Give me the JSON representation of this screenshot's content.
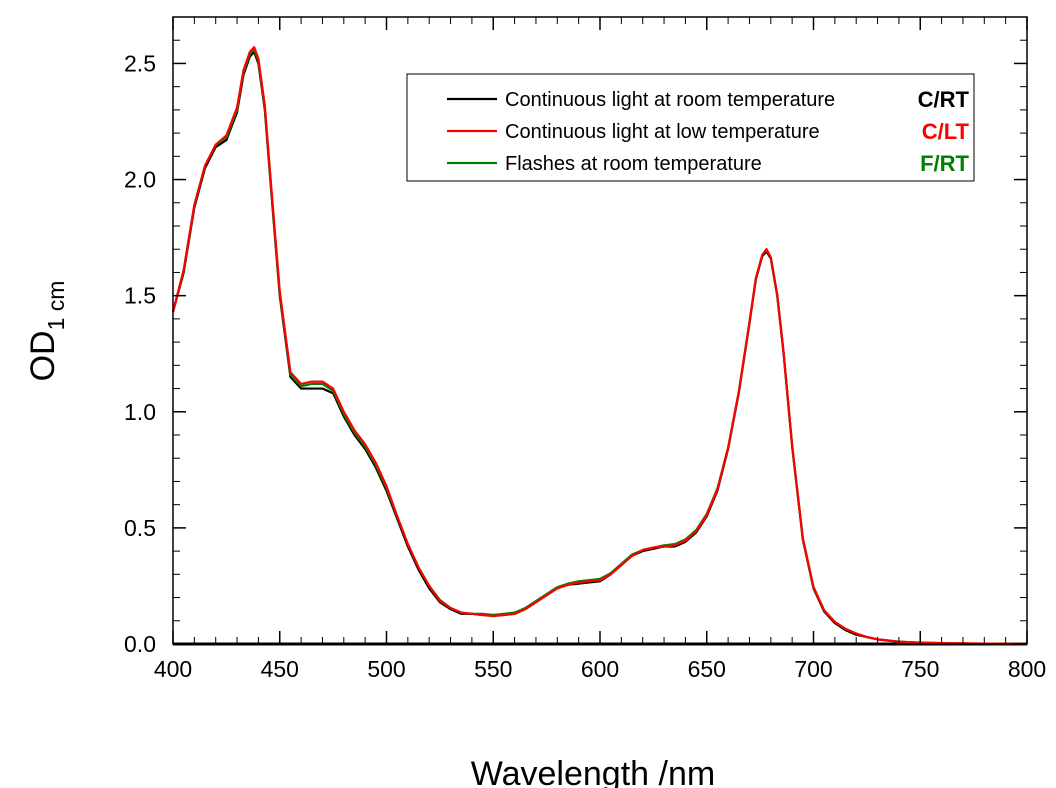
{
  "chart_data": {
    "type": "line",
    "xlabel": "Wavelength /nm",
    "ylabel_main": "OD",
    "ylabel_sub": "1 cm",
    "xlim": [
      400,
      800
    ],
    "ylim": [
      0,
      2.7
    ],
    "x_ticks": [
      400,
      450,
      500,
      550,
      600,
      650,
      700,
      750,
      800
    ],
    "y_ticks": [
      0.0,
      0.5,
      1.0,
      1.5,
      2.0,
      2.5
    ],
    "x_tick_labels": [
      "400",
      "450",
      "500",
      "550",
      "600",
      "650",
      "700",
      "750",
      "800"
    ],
    "y_tick_labels": [
      "0.0",
      "0.5",
      "1.0",
      "1.5",
      "2.0",
      "2.5"
    ],
    "grid": false,
    "legend_position": "top-right",
    "series": [
      {
        "name": "Continuous light at room temperature",
        "tag": "C/RT",
        "color": "#000000",
        "x": [
          400,
          405,
          410,
          415,
          420,
          425,
          430,
          433,
          436,
          438,
          440,
          443,
          446,
          450,
          455,
          460,
          465,
          470,
          475,
          480,
          485,
          490,
          495,
          500,
          505,
          510,
          515,
          520,
          525,
          530,
          535,
          540,
          545,
          550,
          555,
          560,
          565,
          570,
          575,
          580,
          585,
          590,
          595,
          600,
          605,
          610,
          615,
          620,
          625,
          630,
          635,
          640,
          645,
          650,
          655,
          660,
          665,
          670,
          673,
          676,
          678,
          680,
          683,
          686,
          690,
          695,
          700,
          705,
          710,
          715,
          720,
          725,
          730,
          740,
          750,
          760,
          770,
          780,
          790,
          800
        ],
        "y": [
          1.43,
          1.6,
          1.88,
          2.05,
          2.14,
          2.17,
          2.29,
          2.45,
          2.53,
          2.55,
          2.5,
          2.3,
          1.95,
          1.5,
          1.15,
          1.1,
          1.1,
          1.1,
          1.08,
          0.98,
          0.9,
          0.84,
          0.76,
          0.66,
          0.54,
          0.42,
          0.32,
          0.24,
          0.18,
          0.15,
          0.13,
          0.13,
          0.125,
          0.125,
          0.125,
          0.13,
          0.15,
          0.18,
          0.21,
          0.24,
          0.255,
          0.26,
          0.265,
          0.27,
          0.3,
          0.34,
          0.38,
          0.4,
          0.41,
          0.42,
          0.42,
          0.44,
          0.48,
          0.55,
          0.66,
          0.84,
          1.08,
          1.38,
          1.57,
          1.67,
          1.69,
          1.66,
          1.5,
          1.25,
          0.85,
          0.45,
          0.24,
          0.14,
          0.09,
          0.06,
          0.04,
          0.03,
          0.02,
          0.01,
          0.005,
          0.003,
          0.002,
          0.001,
          0.0,
          0.0
        ]
      },
      {
        "name": "Continuous light at low temperature",
        "tag": "C/LT",
        "color": "#ff0000",
        "x": [
          400,
          405,
          410,
          415,
          420,
          425,
          430,
          433,
          436,
          438,
          440,
          443,
          446,
          450,
          455,
          460,
          465,
          470,
          475,
          480,
          485,
          490,
          495,
          500,
          505,
          510,
          515,
          520,
          525,
          530,
          535,
          540,
          545,
          550,
          555,
          560,
          565,
          570,
          575,
          580,
          585,
          590,
          595,
          600,
          605,
          610,
          615,
          620,
          625,
          630,
          635,
          640,
          645,
          650,
          655,
          660,
          665,
          670,
          673,
          676,
          678,
          680,
          683,
          686,
          690,
          695,
          700,
          705,
          710,
          715,
          720,
          725,
          730,
          740,
          750,
          760,
          770,
          780,
          790,
          800
        ],
        "y": [
          1.43,
          1.61,
          1.89,
          2.06,
          2.15,
          2.19,
          2.31,
          2.47,
          2.55,
          2.57,
          2.52,
          2.32,
          1.97,
          1.52,
          1.17,
          1.12,
          1.13,
          1.13,
          1.1,
          1.0,
          0.92,
          0.86,
          0.78,
          0.68,
          0.55,
          0.43,
          0.33,
          0.25,
          0.185,
          0.155,
          0.135,
          0.13,
          0.125,
          0.12,
          0.125,
          0.13,
          0.15,
          0.18,
          0.21,
          0.24,
          0.255,
          0.265,
          0.27,
          0.275,
          0.3,
          0.34,
          0.38,
          0.405,
          0.415,
          0.42,
          0.425,
          0.445,
          0.485,
          0.555,
          0.665,
          0.845,
          1.085,
          1.385,
          1.575,
          1.675,
          1.7,
          1.665,
          1.505,
          1.255,
          0.855,
          0.455,
          0.245,
          0.145,
          0.095,
          0.065,
          0.045,
          0.03,
          0.02,
          0.01,
          0.006,
          0.004,
          0.003,
          0.002,
          0.001,
          0.0
        ]
      },
      {
        "name": "Flashes at room temperature",
        "tag": "F/RT",
        "color": "#008000",
        "x": [
          400,
          405,
          410,
          415,
          420,
          425,
          430,
          433,
          436,
          438,
          440,
          443,
          446,
          450,
          455,
          460,
          465,
          470,
          475,
          480,
          485,
          490,
          495,
          500,
          505,
          510,
          515,
          520,
          525,
          530,
          535,
          540,
          545,
          550,
          555,
          560,
          565,
          570,
          575,
          580,
          585,
          590,
          595,
          600,
          605,
          610,
          615,
          620,
          625,
          630,
          635,
          640,
          645,
          650,
          655,
          660,
          665,
          670,
          673,
          676,
          678,
          680,
          683,
          686,
          690,
          695,
          700,
          705,
          710,
          715,
          720,
          725,
          730,
          740,
          750,
          760,
          770,
          780,
          790,
          800
        ],
        "y": [
          1.43,
          1.61,
          1.89,
          2.06,
          2.15,
          2.18,
          2.3,
          2.46,
          2.54,
          2.56,
          2.51,
          2.31,
          1.96,
          1.51,
          1.16,
          1.11,
          1.12,
          1.12,
          1.09,
          0.99,
          0.91,
          0.85,
          0.77,
          0.67,
          0.55,
          0.43,
          0.33,
          0.25,
          0.19,
          0.155,
          0.135,
          0.13,
          0.13,
          0.125,
          0.13,
          0.135,
          0.155,
          0.185,
          0.215,
          0.245,
          0.26,
          0.27,
          0.275,
          0.28,
          0.305,
          0.345,
          0.385,
          0.405,
          0.415,
          0.425,
          0.43,
          0.45,
          0.49,
          0.56,
          0.67,
          0.845,
          1.085,
          1.385,
          1.575,
          1.675,
          1.7,
          1.665,
          1.505,
          1.255,
          0.855,
          0.455,
          0.245,
          0.145,
          0.095,
          0.065,
          0.045,
          0.03,
          0.02,
          0.01,
          0.006,
          0.004,
          0.003,
          0.002,
          0.001,
          0.0
        ]
      }
    ]
  }
}
